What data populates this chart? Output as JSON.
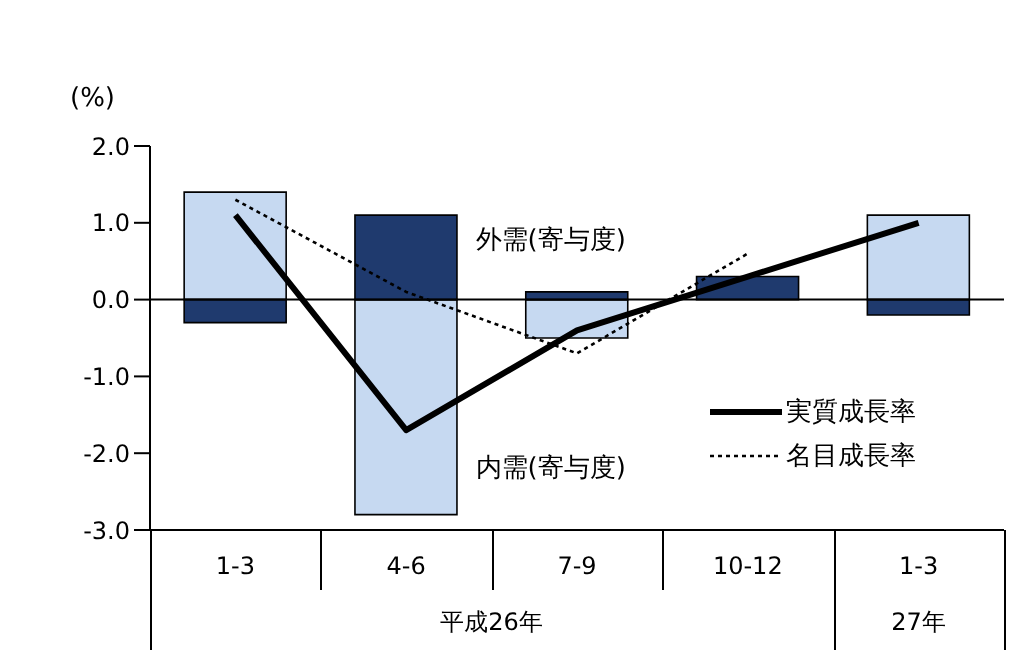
{
  "chart_data": {
    "type": "bar",
    "stacked": true,
    "ylabel": "(%)",
    "categories": [
      "1-3",
      "4-6",
      "7-9",
      "10-12",
      "1-3"
    ],
    "series": [
      {
        "name": "内需(寄与度)",
        "color": "#c6d9f1",
        "values": [
          1.4,
          -2.8,
          -0.5,
          0,
          1.1
        ]
      },
      {
        "name": "外需(寄与度)",
        "color": "#1f3a6e",
        "values": [
          -0.3,
          1.1,
          0.1,
          0.3,
          -0.2
        ]
      },
      {
        "name": "実質成長率",
        "type": "line",
        "color": "#000000",
        "line_style": "solid",
        "values": [
          1.1,
          -1.7,
          -0.4,
          0.3,
          1.0
        ]
      },
      {
        "name": "名目成長率",
        "type": "line",
        "color": "#000000",
        "line_style": "dotted",
        "values": [
          1.3,
          0.1,
          -0.7,
          0.6,
          null
        ]
      }
    ],
    "ylim": [
      -3,
      2
    ],
    "yticks": [
      {
        "value": -3,
        "label": "-3.0"
      },
      {
        "value": -2,
        "label": "-2.0"
      },
      {
        "value": -1,
        "label": "-1.0"
      },
      {
        "value": 0,
        "label": "0.0"
      },
      {
        "value": 1,
        "label": "1.0"
      },
      {
        "value": 2,
        "label": "2.0"
      }
    ],
    "ref_lines": [
      {
        "axis": "y",
        "value": 0
      }
    ],
    "annotations": [
      "平成26年",
      "27年"
    ],
    "legend": "right",
    "grid": false,
    "marker": "none"
  }
}
